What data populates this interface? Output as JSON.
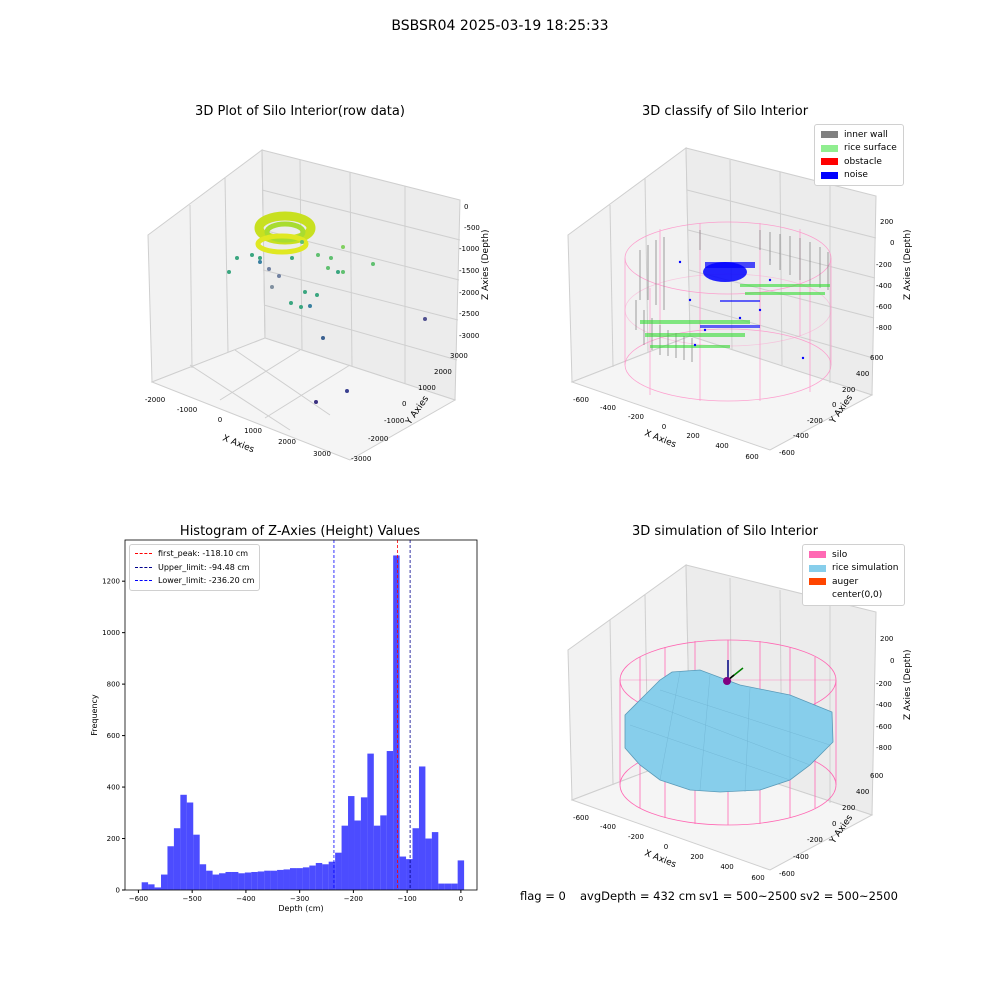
{
  "suptitle": "BSBSR04 2025-03-19 18:25:33",
  "panels": {
    "raw": {
      "title": "3D Plot of Silo Interior(row data)",
      "xlabel": "X Axies",
      "ylabel": "Y Axies",
      "zlabel": "Z Axies (Depth)",
      "xticks": [
        "-2000",
        "-1000",
        "0",
        "1000",
        "2000",
        "3000"
      ],
      "yticks": [
        "-3000",
        "-2000",
        "-1000",
        "0",
        "1000",
        "2000",
        "3000"
      ],
      "zticks": [
        "0",
        "-500",
        "-1000",
        "-1500",
        "-2000",
        "-2500",
        "-3000"
      ]
    },
    "classify": {
      "title": "3D classify of Silo Interior",
      "xlabel": "X Axies",
      "ylabel": "Y Axies",
      "zlabel": "Z Axies (Depth)",
      "xticks": [
        "-600",
        "-400",
        "-200",
        "0",
        "200",
        "400",
        "600"
      ],
      "yticks": [
        "-600",
        "-400",
        "-200",
        "0",
        "200",
        "400",
        "600"
      ],
      "zticks": [
        "200",
        "0",
        "-200",
        "-400",
        "-600",
        "-800"
      ],
      "legend": [
        {
          "label": "inner wall",
          "color": "#808080"
        },
        {
          "label": "rice surface",
          "color": "#90ee90"
        },
        {
          "label": "obstacle",
          "color": "#ff0000"
        },
        {
          "label": "noise",
          "color": "#0000ff"
        }
      ]
    },
    "simulation": {
      "title": "3D simulation of Silo Interior",
      "xlabel": "X Axies",
      "ylabel": "Y Axies",
      "zlabel": "Z Axies (Depth)",
      "xticks": [
        "-600",
        "-400",
        "-200",
        "0",
        "200",
        "400",
        "600"
      ],
      "yticks": [
        "-600",
        "-400",
        "-200",
        "0",
        "200",
        "400",
        "600"
      ],
      "zticks": [
        "200",
        "0",
        "-200",
        "-400",
        "-600",
        "-800"
      ],
      "legend": [
        {
          "label": "silo",
          "color": "#ff69b4"
        },
        {
          "label": "rice simulation",
          "color": "#87ceeb"
        },
        {
          "label": "auger",
          "color": "#ff4500"
        },
        {
          "label": "center(0,0)",
          "color": "#ffffff"
        }
      ]
    }
  },
  "chart_data": {
    "type": "bar",
    "title": "Histogram of Z-Axies (Height) Values",
    "xlabel": "Depth (cm)",
    "ylabel": "Frequency",
    "xlim": [
      -625,
      30
    ],
    "ylim": [
      0,
      1360
    ],
    "xticks": [
      -600,
      -500,
      -400,
      -300,
      -200,
      -100,
      0
    ],
    "yticks": [
      0,
      200,
      400,
      600,
      800,
      1000,
      1200
    ],
    "bin_width": 12,
    "bin_starts": [
      -594,
      -582,
      -570,
      -558,
      -546,
      -534,
      -522,
      -510,
      -498,
      -486,
      -474,
      -462,
      -450,
      -438,
      -426,
      -414,
      -402,
      -390,
      -378,
      -366,
      -354,
      -342,
      -330,
      -318,
      -306,
      -294,
      -282,
      -270,
      -258,
      -246,
      -234,
      -222,
      -210,
      -198,
      -186,
      -174,
      -162,
      -150,
      -138,
      -126,
      -114,
      -102,
      -90,
      -78,
      -66,
      -54,
      -42,
      -30,
      -18,
      -6
    ],
    "values": [
      30,
      22,
      10,
      60,
      170,
      240,
      370,
      340,
      215,
      100,
      75,
      60,
      65,
      70,
      70,
      65,
      68,
      70,
      72,
      75,
      75,
      78,
      80,
      85,
      85,
      88,
      95,
      105,
      100,
      110,
      145,
      250,
      365,
      270,
      360,
      530,
      250,
      290,
      540,
      1300,
      130,
      120,
      240,
      480,
      200,
      225,
      25,
      25,
      25,
      115
    ],
    "color": "#0000ff",
    "lines": [
      {
        "label": "first_peak: -118.10 cm",
        "x": -118.1,
        "color": "#ff0000"
      },
      {
        "label": "Upper_limit: -94.48 cm",
        "x": -94.48,
        "color": "#00008b"
      },
      {
        "label": "Lower_limit: -236.20 cm",
        "x": -236.2,
        "color": "#0000ff"
      }
    ]
  },
  "footer": {
    "flag": "flag = 0",
    "avg": "avgDepth = 432 cm",
    "sv1": "sv1 = 500~2500",
    "sv2": "sv2 = 500~2500"
  }
}
